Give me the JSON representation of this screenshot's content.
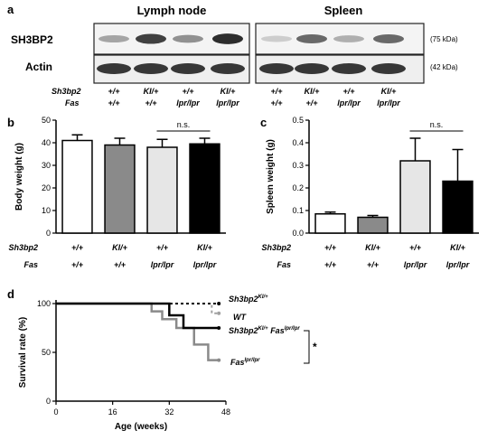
{
  "panels": {
    "a": {
      "letter": "a",
      "tissue_labels": [
        "Lymph node",
        "Spleen"
      ],
      "protein_labels": [
        "SH3BP2",
        "Actin"
      ],
      "kda_labels": [
        "(75 kDa)",
        "(42 kDa)"
      ],
      "genotype_row_labels": [
        "Sh3bp2",
        "Fas"
      ],
      "lanes": [
        {
          "sh3bp2": "+/+",
          "fas": "+/+"
        },
        {
          "sh3bp2": "KI/+",
          "fas": "+/+"
        },
        {
          "sh3bp2": "+/+",
          "fas": "lpr/lpr"
        },
        {
          "sh3bp2": "KI/+",
          "fas": "lpr/lpr"
        },
        {
          "sh3bp2": "+/+",
          "fas": "+/+"
        },
        {
          "sh3bp2": "KI/+",
          "fas": "+/+"
        },
        {
          "sh3bp2": "+/+",
          "fas": "lpr/lpr"
        },
        {
          "sh3bp2": "KI/+",
          "fas": "lpr/lpr"
        }
      ],
      "sh3bp2_band_intensity": [
        0.35,
        0.85,
        0.45,
        0.95,
        0.15,
        0.65,
        0.3,
        0.65
      ],
      "actin_band_intensity": [
        0.9,
        0.9,
        0.9,
        0.9,
        0.9,
        0.9,
        0.9,
        0.9
      ]
    },
    "b": {
      "letter": "b",
      "ylabel": "Body weight (g)",
      "genotype_row_labels": [
        "Sh3bp2",
        "Fas"
      ],
      "ns_label": "n.s.",
      "chart_data": {
        "type": "bar",
        "categories": [
          "+/+ +/+",
          "KI/+ +/+",
          "+/+ lpr/lpr",
          "KI/+ lpr/lpr"
        ],
        "sh3bp2": [
          "+/+",
          "KI/+",
          "+/+",
          "KI/+"
        ],
        "fas": [
          "+/+",
          "+/+",
          "lpr/lpr",
          "lpr/lpr"
        ],
        "values": [
          41,
          39,
          38,
          39.5
        ],
        "errors": [
          2.5,
          3,
          3.5,
          2.5
        ],
        "bar_colors": [
          "#ffffff",
          "#8a8a8a",
          "#e6e6e6",
          "#000000"
        ],
        "yticks": [
          0,
          10,
          20,
          30,
          40,
          50
        ],
        "ylim": [
          0,
          50
        ],
        "ylabel": "Body weight (g)"
      }
    },
    "c": {
      "letter": "c",
      "ylabel": "Spleen weight (g)",
      "genotype_row_labels": [
        "Sh3bp2",
        "Fas"
      ],
      "ns_label": "n.s.",
      "chart_data": {
        "type": "bar",
        "categories": [
          "+/+ +/+",
          "KI/+ +/+",
          "+/+ lpr/lpr",
          "KI/+ lpr/lpr"
        ],
        "sh3bp2": [
          "+/+",
          "KI/+",
          "+/+",
          "KI/+"
        ],
        "fas": [
          "+/+",
          "+/+",
          "lpr/lpr",
          "lpr/lpr"
        ],
        "values": [
          0.085,
          0.07,
          0.32,
          0.23
        ],
        "errors": [
          0.008,
          0.008,
          0.1,
          0.14
        ],
        "bar_colors": [
          "#ffffff",
          "#8a8a8a",
          "#e6e6e6",
          "#000000"
        ],
        "yticks": [
          "0.0",
          "0.1",
          "0.2",
          "0.3",
          "0.4",
          "0.5"
        ],
        "ylim": [
          0,
          0.5
        ],
        "ylabel": "Spleen weight (g)"
      }
    },
    "d": {
      "letter": "d",
      "significance": "*",
      "chart_data": {
        "type": "line",
        "xlabel": "Age (weeks)",
        "ylabel": "Survival rate (%)",
        "xticks": [
          0,
          16,
          32,
          48
        ],
        "yticks": [
          0,
          50,
          100
        ],
        "xlim": [
          0,
          48
        ],
        "ylim": [
          0,
          100
        ],
        "series": [
          {
            "name": "Sh3bp2KI/+",
            "label_main": "Sh3bp2",
            "label_sup": "KI/+",
            "color": "#000000",
            "dash": "3,3",
            "width": 2,
            "x": [
              0,
              28,
              46
            ],
            "y": [
              100,
              100,
              100
            ]
          },
          {
            "name": "WT",
            "label_main": "WT",
            "label_sup": "",
            "color": "#a0a0a0",
            "dash": "3,3",
            "width": 2,
            "x": [
              0,
              44,
              44,
              46
            ],
            "y": [
              100,
              100,
              90,
              90
            ]
          },
          {
            "name": "Sh3bp2KI/+ Faslpr/lpr",
            "label_main": "Sh3bp2",
            "label_sup": "KI/+",
            "label_main2": " Fas",
            "label_sup2": "lpr/lpr",
            "color": "#000000",
            "dash": "",
            "width": 2.5,
            "x": [
              0,
              32,
              32,
              36,
              36,
              46
            ],
            "y": [
              100,
              100,
              88,
              88,
              75,
              75
            ]
          },
          {
            "name": "Faslpr/lpr",
            "label_main": "Fas",
            "label_sup": "lpr/lpr",
            "color": "#8a8a8a",
            "dash": "",
            "width": 2.5,
            "x": [
              0,
              27,
              27,
              30,
              30,
              34,
              34,
              39,
              39,
              43,
              43,
              46
            ],
            "y": [
              100,
              100,
              92,
              92,
              84,
              84,
              75,
              75,
              58,
              58,
              42,
              42
            ]
          }
        ]
      }
    }
  }
}
